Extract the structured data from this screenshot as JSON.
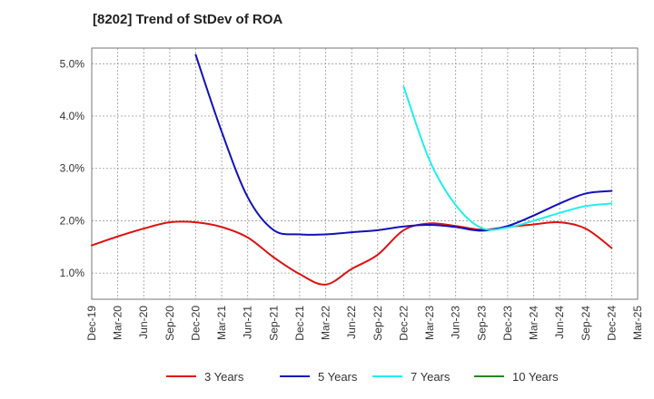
{
  "chart_data": {
    "type": "line",
    "title": "[8202]  Trend of StDev of ROA",
    "xlabel": "",
    "ylabel": "",
    "x_categories": [
      "Dec-19",
      "Mar-20",
      "Jun-20",
      "Sep-20",
      "Dec-20",
      "Mar-21",
      "Jun-21",
      "Sep-21",
      "Dec-21",
      "Mar-22",
      "Jun-22",
      "Sep-22",
      "Dec-22",
      "Mar-23",
      "Jun-23",
      "Sep-23",
      "Dec-23",
      "Mar-24",
      "Jun-24",
      "Sep-24",
      "Dec-24",
      "Mar-25"
    ],
    "y_ticks": [
      "1.0%",
      "2.0%",
      "3.0%",
      "4.0%",
      "5.0%"
    ],
    "y_tick_values": [
      1.0,
      2.0,
      3.0,
      4.0,
      5.0
    ],
    "ylim": [
      0.5,
      5.3
    ],
    "grid": true,
    "legend_position": "bottom",
    "series": [
      {
        "name": "3 Years",
        "color": "#dd1111",
        "points": [
          [
            "Dec-19",
            1.53
          ],
          [
            "Mar-20",
            1.7
          ],
          [
            "Jun-20",
            1.85
          ],
          [
            "Sep-20",
            1.97
          ],
          [
            "Dec-20",
            1.97
          ],
          [
            "Mar-21",
            1.88
          ],
          [
            "Jun-21",
            1.68
          ],
          [
            "Sep-21",
            1.3
          ],
          [
            "Dec-21",
            0.98
          ],
          [
            "Mar-22",
            0.78
          ],
          [
            "Jun-22",
            1.08
          ],
          [
            "Sep-22",
            1.35
          ],
          [
            "Dec-22",
            1.82
          ],
          [
            "Mar-23",
            1.95
          ],
          [
            "Jun-23",
            1.9
          ],
          [
            "Sep-23",
            1.83
          ],
          [
            "Dec-23",
            1.88
          ],
          [
            "Mar-24",
            1.93
          ],
          [
            "Jun-24",
            1.97
          ],
          [
            "Sep-24",
            1.85
          ],
          [
            "Dec-24",
            1.48
          ]
        ]
      },
      {
        "name": "5 Years",
        "color": "#1111bb",
        "points": [
          [
            "Dec-20",
            5.17
          ],
          [
            "Mar-21",
            3.7
          ],
          [
            "Jun-21",
            2.45
          ],
          [
            "Sep-21",
            1.82
          ],
          [
            "Dec-21",
            1.74
          ],
          [
            "Mar-22",
            1.74
          ],
          [
            "Jun-22",
            1.78
          ],
          [
            "Sep-22",
            1.82
          ],
          [
            "Dec-22",
            1.89
          ],
          [
            "Mar-23",
            1.92
          ],
          [
            "Jun-23",
            1.88
          ],
          [
            "Sep-23",
            1.81
          ],
          [
            "Dec-23",
            1.9
          ],
          [
            "Mar-24",
            2.1
          ],
          [
            "Jun-24",
            2.33
          ],
          [
            "Sep-24",
            2.52
          ],
          [
            "Dec-24",
            2.57
          ]
        ]
      },
      {
        "name": "7 Years",
        "color": "#22eeee",
        "points": [
          [
            "Dec-22",
            4.56
          ],
          [
            "Mar-23",
            3.15
          ],
          [
            "Jun-23",
            2.3
          ],
          [
            "Sep-23",
            1.86
          ],
          [
            "Dec-23",
            1.87
          ],
          [
            "Mar-24",
            2.0
          ],
          [
            "Jun-24",
            2.15
          ],
          [
            "Sep-24",
            2.28
          ],
          [
            "Dec-24",
            2.33
          ]
        ]
      },
      {
        "name": "10 Years",
        "color": "#228822",
        "points": []
      }
    ]
  }
}
